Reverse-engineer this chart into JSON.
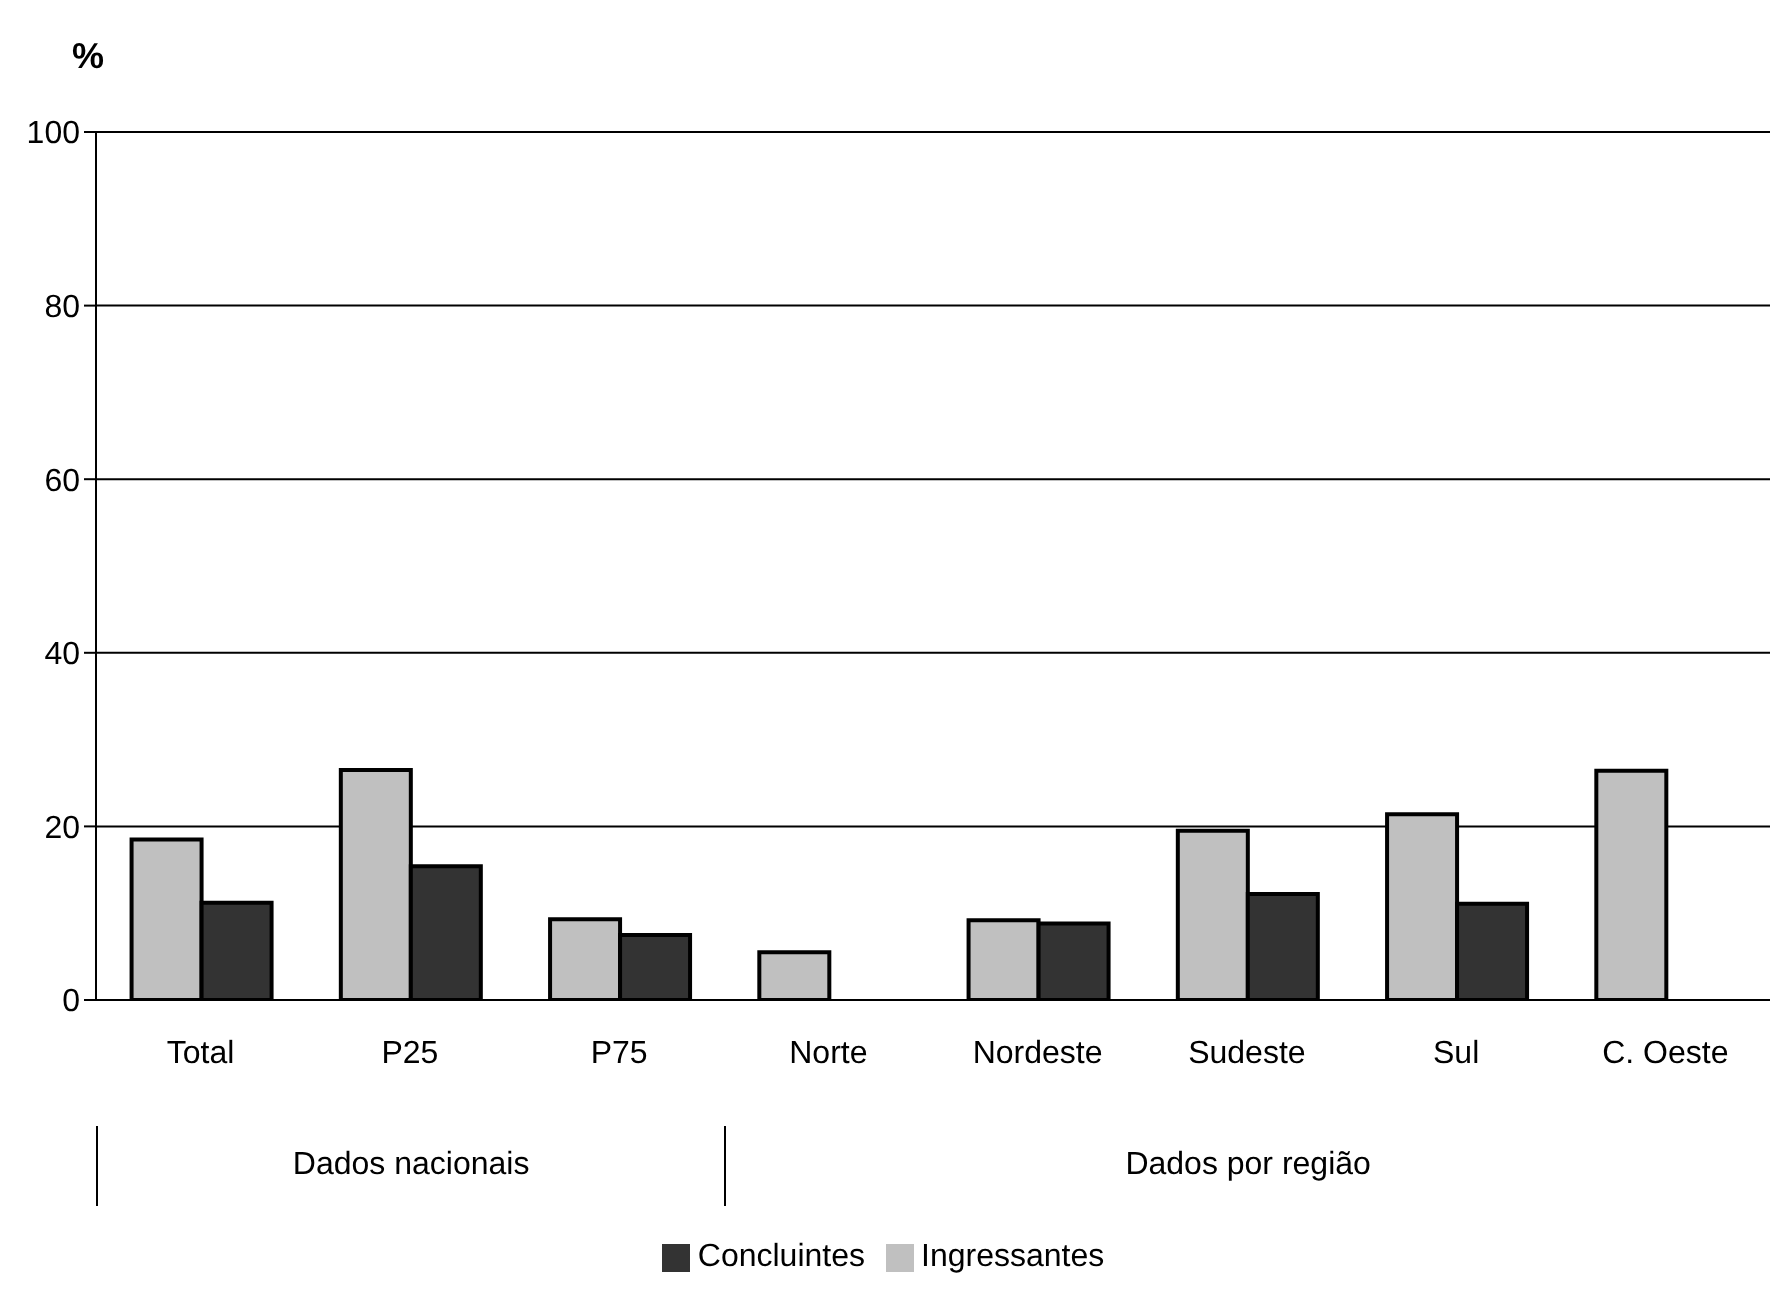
{
  "chart_data": {
    "type": "bar",
    "ylabel": "%",
    "categories": [
      "Total",
      "P25",
      "P75",
      "Norte",
      "Nordeste",
      "Sudeste",
      "Sul",
      "C. Oeste"
    ],
    "series": [
      {
        "name": "Ingressantes",
        "color": "#c0c0c0",
        "values": [
          18.5,
          26.5,
          9.3,
          5.5,
          9.2,
          19.5,
          21.4,
          26.4
        ]
      },
      {
        "name": "Concluintes",
        "color": "#333333",
        "values": [
          11.2,
          15.4,
          7.5,
          null,
          8.8,
          12.2,
          11.1,
          null
        ]
      }
    ],
    "ylim": [
      0,
      100
    ],
    "yticks": [
      0,
      20,
      40,
      60,
      80,
      100
    ],
    "grid": "y",
    "legend": "bottom",
    "annotations": [
      "Dados nacionais",
      "Dados por região"
    ]
  }
}
